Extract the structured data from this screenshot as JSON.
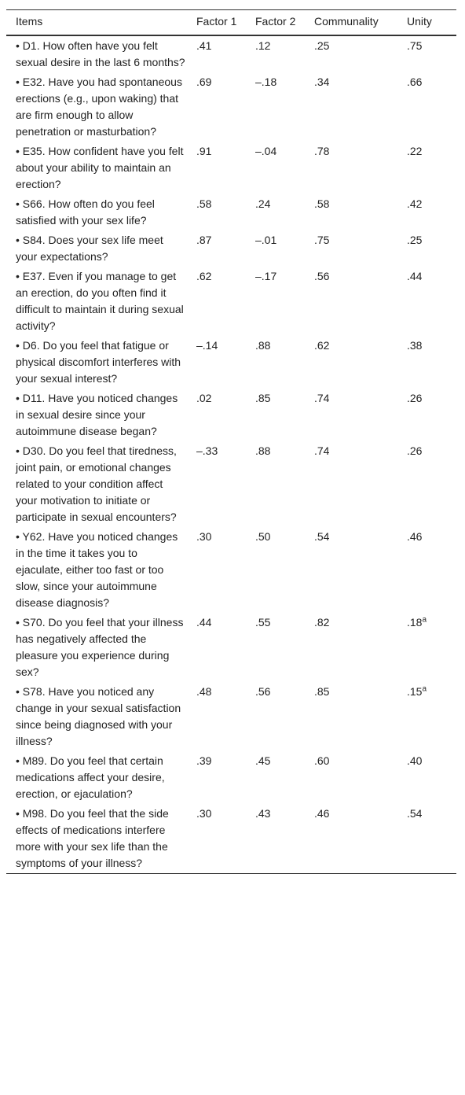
{
  "table": {
    "header": [
      "Items",
      "Factor 1",
      "Factor 2",
      "Communality",
      "Unity"
    ],
    "rows": [
      [
        "• D1. How often have you felt sexual desire in the last 6 months?",
        ".41",
        ".12",
        ".25",
        ".75"
      ],
      [
        "• E32. Have you had spontaneous erections (e.g., upon waking) that are firm enough to allow penetration or masturbation?",
        ".69",
        "–.18",
        ".34",
        ".66"
      ],
      [
        "• E35. How confident have you felt about your ability to maintain an erection?",
        ".91",
        "–.04",
        ".78",
        ".22"
      ],
      [
        "• S66. How often do you feel satisfied with your sex life?",
        ".58",
        ".24",
        ".58",
        ".42"
      ],
      [
        "• S84. Does your sex life meet your expectations?",
        ".87",
        "–.01",
        ".75",
        ".25"
      ],
      [
        "• E37. Even if you manage to get an erection, do you often find it difficult to maintain it during sexual activity?",
        ".62",
        "–.17",
        ".56",
        ".44"
      ],
      [
        "• D6. Do you feel that fatigue or physical discomfort interferes with your sexual interest?",
        "–.14",
        ".88",
        ".62",
        ".38"
      ],
      [
        "• D11. Have you noticed changes in sexual desire since your autoimmune disease began?",
        ".02",
        ".85",
        ".74",
        ".26"
      ],
      [
        "• D30. Do you feel that tiredness, joint pain, or emotional changes related to your condition affect your motivation to initiate or participate in sexual encounters?",
        "–.33",
        ".88",
        ".74",
        ".26"
      ],
      [
        "• Y62. Have you noticed changes in the time it takes you to ejaculate, either too fast or too slow, since your autoimmune disease diagnosis?",
        ".30",
        ".50",
        ".54",
        ".46"
      ],
      [
        "• S70. Do you feel that your illness has negatively affected the pleasure you experience during sex?",
        ".44",
        ".55",
        ".82",
        {
          "text": ".18",
          "sup": "a"
        }
      ],
      [
        "• S78. Have you noticed any change in your sexual satisfaction since being diagnosed with your illness?",
        ".48",
        ".56",
        ".85",
        {
          "text": ".15",
          "sup": "a"
        }
      ],
      [
        "• M89. Do you feel that certain medications affect your desire, erection, or ejaculation?",
        ".39",
        ".45",
        ".60",
        ".40"
      ],
      [
        "• M98. Do you feel that the side effects of medications interfere more with your sex life than the symptoms of your illness?",
        ".30",
        ".43",
        ".46",
        ".54"
      ]
    ]
  }
}
